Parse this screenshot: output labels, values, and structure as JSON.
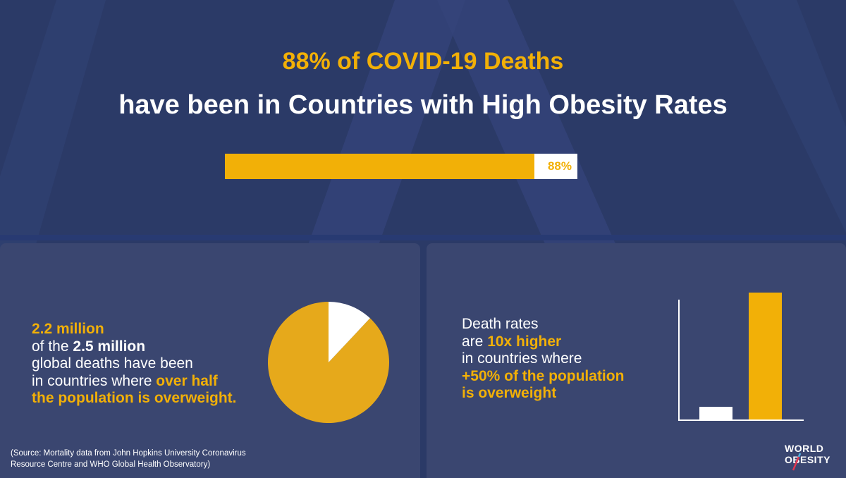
{
  "header": {
    "title_line1": "88% of COVID-19 Deaths",
    "title_line2": "have been in Countries with High Obesity Rates"
  },
  "progress": {
    "value": 0.88,
    "label": "88%"
  },
  "left_panel": {
    "line1": "2.2 million",
    "line2_a": "of the ",
    "line2_b": "2.5 million",
    "line3": "global deaths have been",
    "line4_a": "in countries where ",
    "line4_b": "over half",
    "line5": "the population is overweight.",
    "source_line1": "(Source: Mortality data from John Hopkins University Coronavirus",
    "source_line2": "Resource Centre and WHO Global Health Observatory)"
  },
  "right_panel": {
    "line1": "Death rates",
    "line2_a": "are ",
    "line2_b": "10x higher",
    "line3": "in countries where",
    "line4": "+50% of the population",
    "line5": "is overweight"
  },
  "logo": {
    "line1": "WORLD",
    "line2": "OBESITY"
  },
  "colors": {
    "accent": "#f2b007",
    "pie_fill": "#e6a91b",
    "background": "#2b3a67",
    "panel": "#3a4670",
    "white": "#ffffff"
  },
  "chart_data": [
    {
      "type": "pie",
      "slices": [
        {
          "value": 2.2,
          "color": "#e6a91b"
        },
        {
          "value": 0.3,
          "color": "#ffffff"
        }
      ]
    },
    {
      "type": "bar",
      "categories": [
        "",
        ""
      ],
      "values": [
        1,
        10
      ],
      "colors": [
        "#ffffff",
        "#f2b007"
      ]
    }
  ]
}
